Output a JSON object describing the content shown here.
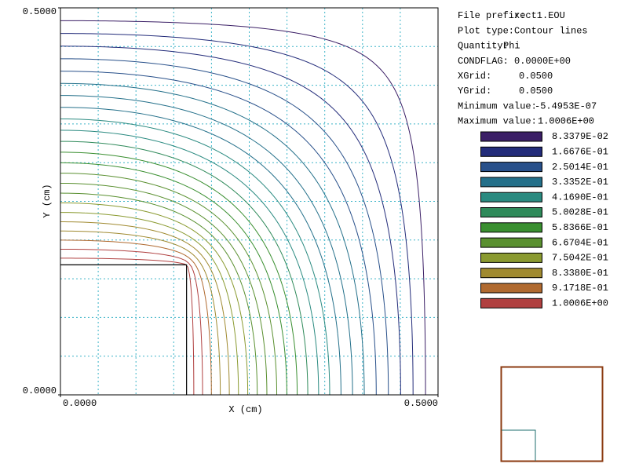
{
  "chart_data": {
    "type": "contour",
    "xlabel": "X (cm)",
    "ylabel": "Y (cm)",
    "xlim": [
      0,
      0.5
    ],
    "ylim": [
      0,
      0.5
    ],
    "xticks": [
      {
        "value": 0,
        "label": "0.0000"
      },
      {
        "value": 0.5,
        "label": "0.5000"
      }
    ],
    "yticks": [
      {
        "value": 0,
        "label": "0.0000"
      },
      {
        "value": 0.5,
        "label": "0.5000"
      }
    ],
    "grid": true,
    "conductor": {
      "x": 0.167,
      "y": 0.168,
      "color": "#000000"
    },
    "info": [
      {
        "label": "File prefix:",
        "value": "rect1.EOU"
      },
      {
        "label": "Plot type:",
        "value": "Contour lines"
      },
      {
        "label": "Quantity:",
        "value": "Phi"
      },
      {
        "label": "CONDFLAG:",
        "value": "0.0000E+00"
      },
      {
        "label": "XGrid:",
        "value": {
          "value": 0.05,
          "label": "0.0500"
        }
      },
      {
        "label": "YGrid:",
        "value": {
          "value": 0.05,
          "label": "0.0500"
        }
      },
      {
        "label": "Minimum value:",
        "value": "-5.4953E-07"
      },
      {
        "label": "Maximum value:",
        "value": "1.0006E+00"
      }
    ],
    "legend": [
      {
        "value": 0.083379,
        "label": "8.3379E-02",
        "color": "#3b1f66"
      },
      {
        "value": 0.16676,
        "label": "1.6676E-01",
        "color": "#232c7a"
      },
      {
        "value": 0.25014,
        "label": "2.5014E-01",
        "color": "#28508a"
      },
      {
        "value": 0.33352,
        "label": "3.3352E-01",
        "color": "#24708a"
      },
      {
        "value": 0.4169,
        "label": "4.1690E-01",
        "color": "#2a8a80"
      },
      {
        "value": 0.50028,
        "label": "5.0028E-01",
        "color": "#2f8a5a"
      },
      {
        "value": 0.58366,
        "label": "5.8366E-01",
        "color": "#3a8f30"
      },
      {
        "value": 0.66704,
        "label": "6.6704E-01",
        "color": "#5a9030"
      },
      {
        "value": 0.75042,
        "label": "7.5042E-01",
        "color": "#8a9a30"
      },
      {
        "value": 0.8338,
        "label": "8.3380E-01",
        "color": "#a08a30"
      },
      {
        "value": 0.91718,
        "label": "9.1718E-01",
        "color": "#b06a30"
      },
      {
        "value": 1.0006,
        "label": "1.0006E+00",
        "color": "#b04040"
      }
    ],
    "contour_levels": [
      0.0417,
      0.0834,
      0.1251,
      0.1668,
      0.2085,
      0.2502,
      0.2918,
      0.3335,
      0.3752,
      0.4169,
      0.4586,
      0.5003,
      0.542,
      0.5837,
      0.6254,
      0.667,
      0.7087,
      0.7504,
      0.7921,
      0.8338,
      0.8755,
      0.9172,
      0.9589
    ]
  }
}
